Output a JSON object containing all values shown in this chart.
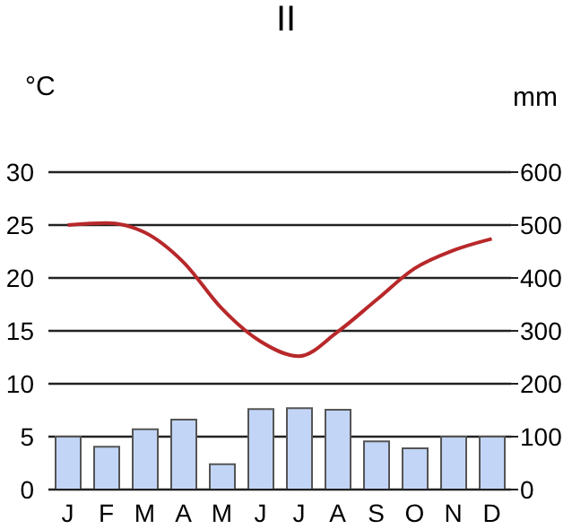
{
  "chart_data": {
    "type": "bar",
    "title": "II",
    "ylabel": "°C",
    "y2label": "mm",
    "categories": [
      "J",
      "F",
      "M",
      "A",
      "M",
      "J",
      "J",
      "A",
      "S",
      "O",
      "N",
      "D"
    ],
    "series": [
      {
        "axis": "y2",
        "color": "#c2d5f7",
        "values": [
          100,
          81,
          114,
          132,
          48,
          152,
          154,
          151,
          91,
          78,
          100,
          100
        ]
      },
      {
        "type": "line",
        "axis": "y",
        "color": "#b8282a",
        "values": [
          25.0,
          25.2,
          24.3,
          21.5,
          17.1,
          14.0,
          12.6,
          14.9,
          17.9,
          20.9,
          22.6,
          23.7
        ]
      }
    ],
    "ylim": [
      0,
      30
    ],
    "yticks": [
      0,
      5,
      10,
      15,
      20,
      25,
      30
    ],
    "y2lim": [
      0,
      600
    ],
    "y2ticks": [
      0,
      100,
      200,
      300,
      400,
      500,
      600
    ],
    "grid": "y",
    "legend": false,
    "marker": "none",
    "line_style": "solid"
  }
}
